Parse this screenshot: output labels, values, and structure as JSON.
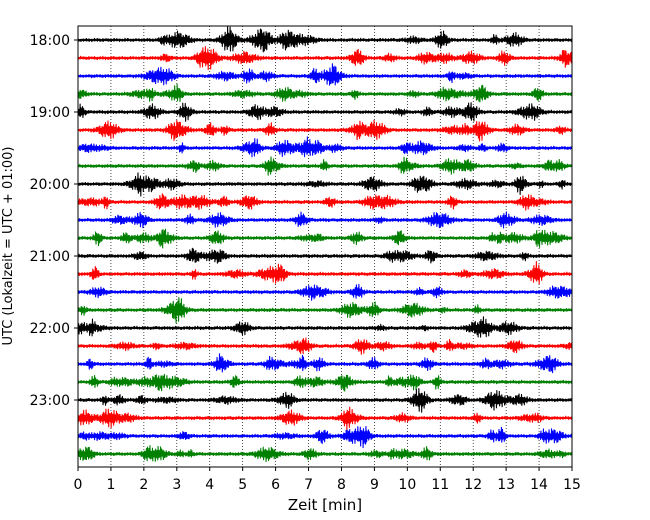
{
  "chart_data": {
    "type": "line",
    "title": "",
    "xlabel": "Zeit  [min]",
    "ylabel": "UTC (Lokalzeit = UTC + 01:00)",
    "xlim": [
      0,
      15
    ],
    "x_ticks": [
      "0",
      "1",
      "2",
      "3",
      "4",
      "5",
      "6",
      "7",
      "8",
      "9",
      "10",
      "11",
      "12",
      "13",
      "14",
      "15"
    ],
    "y_ticks": [
      "18:00",
      "19:00",
      "20:00",
      "21:00",
      "22:00",
      "23:00"
    ],
    "grid": "vertical dotted lines at each minute",
    "trace_interval_minutes": 15,
    "traces_start": "18:00",
    "traces_end": "23:45",
    "trace_count": 24,
    "trace_color_cycle": [
      "#000000",
      "#ff0000",
      "#0000ff",
      "#008000"
    ],
    "series": [
      {
        "start": "18:00",
        "color": "#000000"
      },
      {
        "start": "18:15",
        "color": "#ff0000"
      },
      {
        "start": "18:30",
        "color": "#0000ff"
      },
      {
        "start": "18:45",
        "color": "#008000"
      },
      {
        "start": "19:00",
        "color": "#000000"
      },
      {
        "start": "19:15",
        "color": "#ff0000"
      },
      {
        "start": "19:30",
        "color": "#0000ff"
      },
      {
        "start": "19:45",
        "color": "#008000"
      },
      {
        "start": "20:00",
        "color": "#000000"
      },
      {
        "start": "20:15",
        "color": "#ff0000"
      },
      {
        "start": "20:30",
        "color": "#0000ff"
      },
      {
        "start": "20:45",
        "color": "#008000"
      },
      {
        "start": "21:00",
        "color": "#000000"
      },
      {
        "start": "21:15",
        "color": "#ff0000"
      },
      {
        "start": "21:30",
        "color": "#0000ff"
      },
      {
        "start": "21:45",
        "color": "#008000"
      },
      {
        "start": "22:00",
        "color": "#000000"
      },
      {
        "start": "22:15",
        "color": "#ff0000"
      },
      {
        "start": "22:30",
        "color": "#0000ff"
      },
      {
        "start": "22:45",
        "color": "#008000"
      },
      {
        "start": "23:00",
        "color": "#000000"
      },
      {
        "start": "23:15",
        "color": "#ff0000"
      },
      {
        "start": "23:30",
        "color": "#0000ff"
      },
      {
        "start": "23:45",
        "color": "#008000"
      }
    ]
  }
}
